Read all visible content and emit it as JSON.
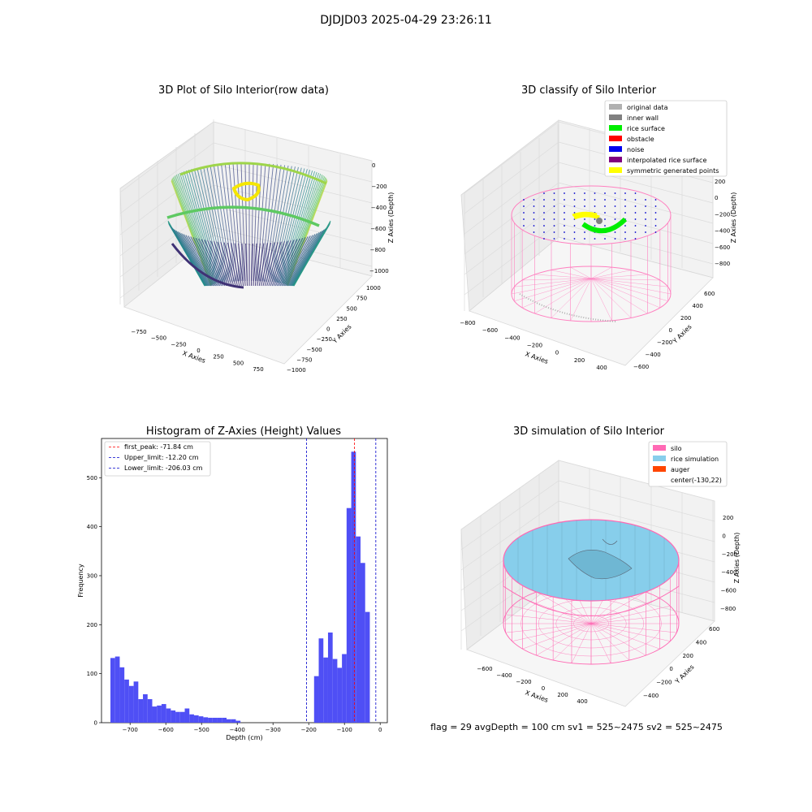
{
  "suptitle": "DJDJD03 2025-04-29 23:26:11",
  "info_line": "flag = 29  avgDepth = 100 cm  sv1 = 525~2475  sv2 = 525~2475",
  "chart_data": [
    {
      "type": "scatter",
      "title": "3D Plot of Silo Interior(row data)",
      "xlabel": "X Axies",
      "ylabel": "Y Axies",
      "zlabel": "Z Axies (Depth)",
      "x_ticks": [
        "−750",
        "−500",
        "−250",
        "0",
        "250",
        "500",
        "750"
      ],
      "y_ticks": [
        "1000",
        "750",
        "500",
        "250",
        "0",
        "−250",
        "−500",
        "−750",
        "−1000"
      ],
      "z_ticks": [
        "0",
        "−200",
        "−400",
        "−600",
        "−800",
        "−1000"
      ],
      "xlim": [
        -900,
        900
      ],
      "ylim": [
        -1000,
        1000
      ],
      "zlim": [
        -1050,
        0
      ],
      "colormap": "viridis"
    },
    {
      "type": "scatter",
      "title": "3D classify of Silo Interior",
      "xlabel": "X Axies",
      "ylabel": "Y Axies",
      "zlabel": "Z Axies (Depth)",
      "x_ticks": [
        "−800",
        "−600",
        "−400",
        "−200",
        "0",
        "200",
        "400"
      ],
      "y_ticks": [
        "600",
        "400",
        "200",
        "0",
        "−200",
        "−400",
        "−600"
      ],
      "z_ticks": [
        "200",
        "0",
        "−200",
        "−400",
        "−600",
        "−800"
      ],
      "legend": [
        {
          "label": "original data",
          "color": "#b0b0b0"
        },
        {
          "label": "inner wall",
          "color": "#808080"
        },
        {
          "label": "rice surface",
          "color": "#00ee00"
        },
        {
          "label": "obstacle",
          "color": "#ff0000"
        },
        {
          "label": "noise",
          "color": "#0000ee"
        },
        {
          "label": "interpolated rice surface",
          "color": "#800080"
        },
        {
          "label": "symmetric generated points",
          "color": "#ffff00"
        }
      ],
      "colors": {
        "wall": "#ff80c0"
      }
    },
    {
      "type": "bar",
      "title": "Histogram of Z-Axies (Height) Values",
      "xlabel": "Depth (cm)",
      "ylabel": "Frequency",
      "xlim": [
        -780,
        20
      ],
      "ylim": [
        0,
        580
      ],
      "x_ticks": [
        -700,
        -600,
        -500,
        -400,
        -300,
        -200,
        -100,
        0
      ],
      "y_ticks": [
        0,
        100,
        200,
        300,
        400,
        500
      ],
      "bar_color": "#4f4ff5",
      "bins": [
        {
          "x0": -755,
          "x1": -742,
          "v": 132
        },
        {
          "x0": -742,
          "x1": -729,
          "v": 135
        },
        {
          "x0": -729,
          "x1": -716,
          "v": 113
        },
        {
          "x0": -716,
          "x1": -703,
          "v": 88
        },
        {
          "x0": -703,
          "x1": -690,
          "v": 75
        },
        {
          "x0": -690,
          "x1": -677,
          "v": 84
        },
        {
          "x0": -677,
          "x1": -664,
          "v": 48
        },
        {
          "x0": -664,
          "x1": -651,
          "v": 58
        },
        {
          "x0": -651,
          "x1": -638,
          "v": 48
        },
        {
          "x0": -638,
          "x1": -625,
          "v": 33
        },
        {
          "x0": -625,
          "x1": -612,
          "v": 35
        },
        {
          "x0": -612,
          "x1": -599,
          "v": 38
        },
        {
          "x0": -599,
          "x1": -586,
          "v": 29
        },
        {
          "x0": -586,
          "x1": -573,
          "v": 25
        },
        {
          "x0": -573,
          "x1": -560,
          "v": 22
        },
        {
          "x0": -560,
          "x1": -547,
          "v": 22
        },
        {
          "x0": -547,
          "x1": -534,
          "v": 29
        },
        {
          "x0": -534,
          "x1": -521,
          "v": 17
        },
        {
          "x0": -521,
          "x1": -508,
          "v": 15
        },
        {
          "x0": -508,
          "x1": -495,
          "v": 13
        },
        {
          "x0": -495,
          "x1": -482,
          "v": 11
        },
        {
          "x0": -482,
          "x1": -469,
          "v": 10
        },
        {
          "x0": -469,
          "x1": -456,
          "v": 10
        },
        {
          "x0": -456,
          "x1": -443,
          "v": 10
        },
        {
          "x0": -443,
          "x1": -430,
          "v": 10
        },
        {
          "x0": -430,
          "x1": -417,
          "v": 7
        },
        {
          "x0": -417,
          "x1": -404,
          "v": 7
        },
        {
          "x0": -404,
          "x1": -391,
          "v": 4
        },
        {
          "x0": -185,
          "x1": -172,
          "v": 95
        },
        {
          "x0": -172,
          "x1": -159,
          "v": 172
        },
        {
          "x0": -159,
          "x1": -146,
          "v": 133
        },
        {
          "x0": -146,
          "x1": -133,
          "v": 184
        },
        {
          "x0": -133,
          "x1": -120,
          "v": 130
        },
        {
          "x0": -120,
          "x1": -107,
          "v": 112
        },
        {
          "x0": -107,
          "x1": -94,
          "v": 140
        },
        {
          "x0": -94,
          "x1": -81,
          "v": 438
        },
        {
          "x0": -81,
          "x1": -68,
          "v": 553
        },
        {
          "x0": -68,
          "x1": -55,
          "v": 380
        },
        {
          "x0": -55,
          "x1": -42,
          "v": 326
        },
        {
          "x0": -42,
          "x1": -29,
          "v": 226
        }
      ],
      "lines": [
        {
          "label": "first_peak: -71.84 cm",
          "x": -71.84,
          "color": "#ff0000"
        },
        {
          "label": "Upper_limit: -12.20 cm",
          "x": -12.2,
          "color": "#0000cc"
        },
        {
          "label": "Lower_limit: -206.03 cm",
          "x": -206.03,
          "color": "#0000cc"
        }
      ]
    },
    {
      "type": "surface",
      "title": "3D simulation of Silo Interior",
      "xlabel": "X Axies",
      "ylabel": "Y Axies",
      "zlabel": "Z Axies (Depth)",
      "x_ticks": [
        "−600",
        "−400",
        "−200",
        "0",
        "200",
        "400"
      ],
      "y_ticks": [
        "600",
        "400",
        "200",
        "0",
        "−200",
        "−400"
      ],
      "z_ticks": [
        "200",
        "0",
        "−200",
        "−400",
        "−600",
        "−800"
      ],
      "legend": [
        {
          "label": "silo",
          "color": "#ff69b4"
        },
        {
          "label": "rice simulation",
          "color": "#87ceeb"
        },
        {
          "label": "auger",
          "color": "#ff4500"
        },
        {
          "label": "center(-130,22)",
          "color": ""
        }
      ]
    }
  ]
}
